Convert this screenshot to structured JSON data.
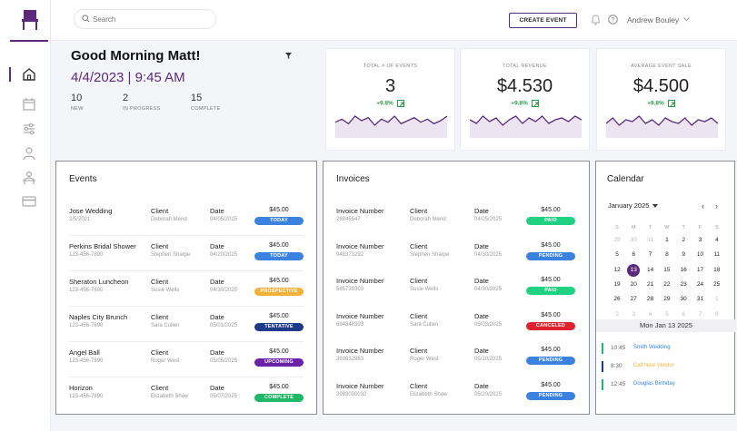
{
  "header": {
    "search_placeholder": "Search",
    "create_event_label": "CREATE EVENT",
    "user_name": "Andrew Bouley"
  },
  "greeting": {
    "title": "Good Morning Matt!",
    "datetime": "4/4/2023 | 9:45 AM",
    "stats": [
      {
        "value": "10",
        "label": "NEW"
      },
      {
        "value": "2",
        "label": "IN PROGRESS"
      },
      {
        "value": "15",
        "label": "COMPLETE"
      }
    ]
  },
  "kpis": [
    {
      "label": "TOTAL # OF EVENTS",
      "value": "3",
      "change": "+9.8%",
      "trend": [
        10,
        12,
        9,
        14,
        11,
        13,
        8,
        12,
        10,
        14,
        9,
        11,
        13,
        10,
        12,
        9,
        11,
        14
      ]
    },
    {
      "label": "TOTAL REVENUE",
      "value": "$4.530",
      "change": "+9.8%",
      "trend": [
        11,
        9,
        13,
        10,
        12,
        8,
        11,
        13,
        9,
        12,
        10,
        13,
        9,
        11,
        12,
        10,
        13,
        11
      ]
    },
    {
      "label": "AVERAGE  EVENT SALE",
      "value": "$4.500",
      "change": "+9.8%",
      "trend": [
        10,
        13,
        9,
        12,
        11,
        14,
        10,
        12,
        9,
        13,
        11,
        10,
        13,
        9,
        12,
        11,
        13,
        10
      ]
    }
  ],
  "events": {
    "title": "Events",
    "rows": [
      {
        "name": "Jose Wedding",
        "sub": "2/5/2021",
        "client_label": "Client",
        "client": "Deborah Mend",
        "date_label": "Date",
        "date": "04/05/2025",
        "amount": "$45.00",
        "status": "TODAY",
        "color": "#3b82e0"
      },
      {
        "name": "Perkins Bridal Shower",
        "sub": "123-456-7890",
        "client_label": "Client",
        "client": "Stephen Sharpe",
        "date_label": "Date",
        "date": "04/20/2025",
        "amount": "$45.00",
        "status": "TODAY",
        "color": "#3b82e0"
      },
      {
        "name": "Sheraton Luncheon",
        "sub": "123-456-7890",
        "client_label": "Client",
        "client": "Susie Wells",
        "date_label": "Date",
        "date": "04/30/2025",
        "amount": "$45.00",
        "status": "PROSPECTIVE",
        "color": "#f2b13a"
      },
      {
        "name": "Naples City Brunch",
        "sub": "123-456-7890",
        "client_label": "Client",
        "client": "Sara Cullen",
        "date_label": "Date",
        "date": "05/01/2025",
        "amount": "$45.00",
        "status": "TENTATIVE",
        "color": "#1e3a8a"
      },
      {
        "name": "Angel Ball",
        "sub": "123-456-7890",
        "client_label": "Client",
        "client": "Roger West",
        "date_label": "Date",
        "date": "05/05/2025",
        "amount": "$45.00",
        "status": "UPCOMING",
        "color": "#6b21a8"
      },
      {
        "name": "Horizon",
        "sub": "123-456-7890",
        "client_label": "Client",
        "client": "Elizabeth Show",
        "date_label": "Date",
        "date": "05/07/2025",
        "amount": "$45.00",
        "status": "COMPLETE",
        "color": "#1fb866"
      }
    ]
  },
  "invoices": {
    "title": "Invoices",
    "rows": [
      {
        "label": "Invoice Number",
        "number": "28846547",
        "client_label": "Client",
        "client": "Deborah Mend",
        "date_label": "Date",
        "date": "04/05/2025",
        "amount": "$45.00",
        "status": "PAID",
        "color": "#1fd180"
      },
      {
        "label": "Invoice Number",
        "number": "948373292",
        "client_label": "Client",
        "client": "Stephen Sharpe",
        "date_label": "Date",
        "date": "04/30/2025",
        "amount": "$45.00",
        "status": "PENDING",
        "color": "#3b82e0"
      },
      {
        "label": "Invoice Number",
        "number": "585739303",
        "client_label": "Client",
        "client": "Susie Wells",
        "date_label": "Date",
        "date": "04/30/2025",
        "amount": "$45.00",
        "status": "PAID",
        "color": "#1fd180"
      },
      {
        "label": "Invoice Number",
        "number": "694848393",
        "client_label": "Client",
        "client": "Sara Cullen",
        "date_label": "Date",
        "date": "05/03/2025",
        "amount": "$45.00",
        "status": "CANCELED",
        "color": "#e0242f"
      },
      {
        "label": "Invoice Number",
        "number": "393032983",
        "client_label": "Client",
        "client": "Roger West",
        "date_label": "Date",
        "date": "05/10/2025",
        "amount": "$45.00",
        "status": "PENDING",
        "color": "#3b82e0"
      },
      {
        "label": "Invoice Number",
        "number": "3993030032",
        "client_label": "Client",
        "client": "Elizabeth Show",
        "date_label": "Date",
        "date": "05/20/2025",
        "amount": "$45.00",
        "status": "PENDING",
        "color": "#3b82e0"
      }
    ]
  },
  "calendar": {
    "title": "Calendar",
    "month": "January 2025",
    "dow": [
      "S",
      "M",
      "T",
      "W",
      "T",
      "F",
      "S"
    ],
    "weeks": [
      [
        [
          "29",
          true
        ],
        [
          "30",
          true
        ],
        [
          "31",
          true
        ],
        [
          "1",
          false
        ],
        [
          "2",
          false
        ],
        [
          "3",
          false
        ],
        [
          "4",
          false
        ]
      ],
      [
        [
          "5",
          false
        ],
        [
          "6",
          false
        ],
        [
          "7",
          false
        ],
        [
          "8",
          false
        ],
        [
          "9",
          false
        ],
        [
          "10",
          false
        ],
        [
          "11",
          false
        ]
      ],
      [
        [
          "12",
          false
        ],
        [
          "13",
          false
        ],
        [
          "14",
          false
        ],
        [
          "15",
          false
        ],
        [
          "16",
          false
        ],
        [
          "17",
          false
        ],
        [
          "18",
          false
        ]
      ],
      [
        [
          "19",
          false
        ],
        [
          "20",
          false
        ],
        [
          "21",
          false
        ],
        [
          "22",
          false
        ],
        [
          "23",
          false
        ],
        [
          "24",
          false
        ],
        [
          "25",
          false
        ]
      ],
      [
        [
          "26",
          false
        ],
        [
          "27",
          false
        ],
        [
          "28",
          false
        ],
        [
          "29",
          false
        ],
        [
          "30",
          false
        ],
        [
          "31",
          false
        ],
        [
          "1",
          true
        ]
      ],
      [
        [
          "2",
          true
        ],
        [
          "3",
          true
        ],
        [
          "4",
          true
        ],
        [
          "5",
          true
        ],
        [
          "6",
          true
        ],
        [
          "7",
          true
        ],
        [
          "8",
          true
        ]
      ]
    ],
    "selected": "13",
    "selected_label": "Mon Jan 13 2025",
    "events": [
      {
        "time": "10:45",
        "name": "Smith Wedding",
        "color": "#3b82e0",
        "bar": "#1fb866"
      },
      {
        "time": "8:30",
        "name": "Call New Vendor",
        "color": "#f2b13a",
        "bar": "#1e3a8a"
      },
      {
        "time": "12:45",
        "name": "Douglas Birthday",
        "color": "#3b82e0",
        "bar": "#1fb866"
      }
    ]
  },
  "colors": {
    "brand": "#5b2a7a",
    "positive": "#2e9a47"
  },
  "icons": {
    "nav": [
      "home-icon",
      "calendar-icon",
      "settings-sliders-icon",
      "user-icon",
      "person-desk-icon",
      "card-icon"
    ]
  }
}
